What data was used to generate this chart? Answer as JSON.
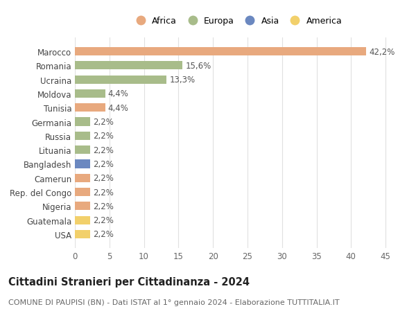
{
  "countries": [
    "Marocco",
    "Romania",
    "Ucraina",
    "Moldova",
    "Tunisia",
    "Germania",
    "Russia",
    "Lituania",
    "Bangladesh",
    "Camerun",
    "Rep. del Congo",
    "Nigeria",
    "Guatemala",
    "USA"
  ],
  "values": [
    42.2,
    15.6,
    13.3,
    4.4,
    4.4,
    2.2,
    2.2,
    2.2,
    2.2,
    2.2,
    2.2,
    2.2,
    2.2,
    2.2
  ],
  "labels": [
    "42,2%",
    "15,6%",
    "13,3%",
    "4,4%",
    "4,4%",
    "2,2%",
    "2,2%",
    "2,2%",
    "2,2%",
    "2,2%",
    "2,2%",
    "2,2%",
    "2,2%",
    "2,2%"
  ],
  "continents": [
    "Africa",
    "Europa",
    "Europa",
    "Europa",
    "Africa",
    "Europa",
    "Europa",
    "Europa",
    "Asia",
    "Africa",
    "Africa",
    "Africa",
    "America",
    "America"
  ],
  "colors": {
    "Africa": "#E8A97E",
    "Europa": "#A8BC8A",
    "Asia": "#6B88C0",
    "America": "#F2D06B"
  },
  "legend_order": [
    "Africa",
    "Europa",
    "Asia",
    "America"
  ],
  "xlim": [
    0,
    47
  ],
  "xticks": [
    0,
    5,
    10,
    15,
    20,
    25,
    30,
    35,
    40,
    45
  ],
  "title": "Cittadini Stranieri per Cittadinanza - 2024",
  "subtitle": "COMUNE DI PAUPISI (BN) - Dati ISTAT al 1° gennaio 2024 - Elaborazione TUTTITALIA.IT",
  "background_color": "#ffffff",
  "grid_color": "#e0e0e0",
  "bar_height": 0.6,
  "label_fontsize": 8.5,
  "tick_fontsize": 8.5,
  "ytick_fontsize": 8.5,
  "title_fontsize": 10.5,
  "subtitle_fontsize": 8.0,
  "legend_fontsize": 9.0
}
